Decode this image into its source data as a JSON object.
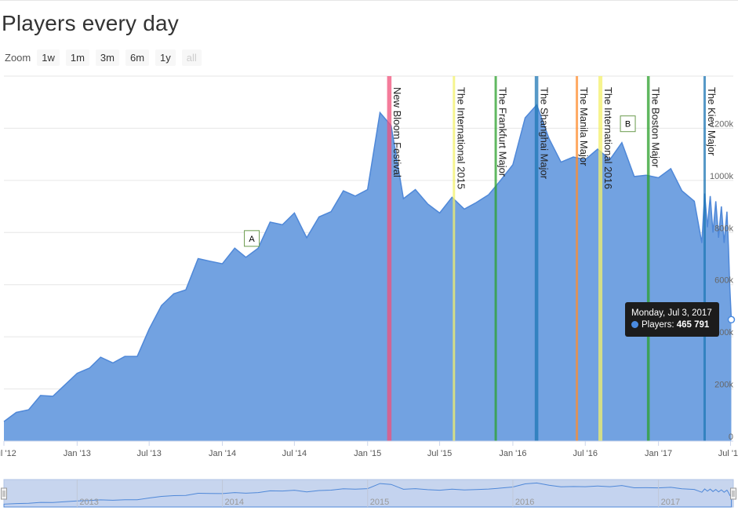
{
  "title": "Players every day",
  "zoom": {
    "label": "Zoom",
    "buttons": [
      "1w",
      "1m",
      "3m",
      "6m",
      "1y",
      "all"
    ],
    "selected": "all"
  },
  "tooltip": {
    "date": "Monday, Jul 3, 2017",
    "series": "Players:",
    "value": "465 791"
  },
  "colors": {
    "area": "#72a2e1",
    "area_line": "#4f88d8",
    "nav_fill": "#c7d5ee",
    "grid": "#e6e6e6"
  },
  "chart_data": {
    "type": "area",
    "title": "Players every day",
    "series": [
      {
        "name": "Players",
        "unit": "players"
      }
    ],
    "x_start": "2012-07-01",
    "x_end": "2017-07-08",
    "ylim": [
      0,
      1400000
    ],
    "y_ticks": [
      0,
      200000,
      400000,
      600000,
      800000,
      1000000,
      1200000
    ],
    "y_tick_labels": [
      "0",
      "200k",
      "400k",
      "600k",
      "800k",
      "1000k",
      "1200k"
    ],
    "x_ticks": [
      {
        "label": "Jul '12",
        "date": "2012-07-01"
      },
      {
        "label": "Jan '13",
        "date": "2013-01-01"
      },
      {
        "label": "Jul '13",
        "date": "2013-07-01"
      },
      {
        "label": "Jan '14",
        "date": "2014-01-01"
      },
      {
        "label": "Jul '14",
        "date": "2014-07-01"
      },
      {
        "label": "Jan '15",
        "date": "2015-01-01"
      },
      {
        "label": "Jul '15",
        "date": "2015-07-01"
      },
      {
        "label": "Jan '16",
        "date": "2016-01-01"
      },
      {
        "label": "Jul '16",
        "date": "2016-07-01"
      },
      {
        "label": "Jan '17",
        "date": "2017-01-01"
      },
      {
        "label": "Jul '17",
        "date": "2017-07-01"
      }
    ],
    "points": [
      [
        "2012-07-01",
        75000
      ],
      [
        "2012-08-01",
        110000
      ],
      [
        "2012-09-01",
        120000
      ],
      [
        "2012-10-01",
        175000
      ],
      [
        "2012-11-01",
        172000
      ],
      [
        "2012-12-01",
        215000
      ],
      [
        "2013-01-01",
        260000
      ],
      [
        "2013-02-01",
        280000
      ],
      [
        "2013-03-01",
        322000
      ],
      [
        "2013-04-01",
        300000
      ],
      [
        "2013-05-01",
        325000
      ],
      [
        "2013-06-01",
        325000
      ],
      [
        "2013-07-01",
        430000
      ],
      [
        "2013-08-01",
        520000
      ],
      [
        "2013-09-01",
        565000
      ],
      [
        "2013-10-01",
        580000
      ],
      [
        "2013-11-01",
        700000
      ],
      [
        "2013-12-01",
        690000
      ],
      [
        "2014-01-01",
        680000
      ],
      [
        "2014-02-01",
        740000
      ],
      [
        "2014-03-01",
        705000
      ],
      [
        "2014-04-01",
        740000
      ],
      [
        "2014-05-01",
        840000
      ],
      [
        "2014-06-01",
        830000
      ],
      [
        "2014-07-01",
        875000
      ],
      [
        "2014-08-01",
        780000
      ],
      [
        "2014-09-01",
        860000
      ],
      [
        "2014-10-01",
        880000
      ],
      [
        "2014-11-01",
        960000
      ],
      [
        "2014-12-01",
        940000
      ],
      [
        "2015-01-01",
        965000
      ],
      [
        "2015-02-01",
        1260000
      ],
      [
        "2015-03-01",
        1210000
      ],
      [
        "2015-04-01",
        930000
      ],
      [
        "2015-05-01",
        965000
      ],
      [
        "2015-06-01",
        910000
      ],
      [
        "2015-07-01",
        875000
      ],
      [
        "2015-08-01",
        935000
      ],
      [
        "2015-09-01",
        890000
      ],
      [
        "2015-10-01",
        915000
      ],
      [
        "2015-11-01",
        945000
      ],
      [
        "2015-12-01",
        1000000
      ],
      [
        "2016-01-01",
        1060000
      ],
      [
        "2016-02-01",
        1240000
      ],
      [
        "2016-03-01",
        1290000
      ],
      [
        "2016-04-01",
        1160000
      ],
      [
        "2016-05-01",
        1070000
      ],
      [
        "2016-06-01",
        1090000
      ],
      [
        "2016-07-01",
        1080000
      ],
      [
        "2016-08-01",
        1120000
      ],
      [
        "2016-09-01",
        1080000
      ],
      [
        "2016-10-01",
        1145000
      ],
      [
        "2016-11-01",
        1015000
      ],
      [
        "2016-12-01",
        1020000
      ],
      [
        "2017-01-01",
        1010000
      ],
      [
        "2017-02-01",
        1045000
      ],
      [
        "2017-03-01",
        960000
      ],
      [
        "2017-04-01",
        920000
      ],
      [
        "2017-04-20",
        760000
      ],
      [
        "2017-04-27",
        950000
      ],
      [
        "2017-05-04",
        820000
      ],
      [
        "2017-05-11",
        940000
      ],
      [
        "2017-05-18",
        800000
      ],
      [
        "2017-05-25",
        920000
      ],
      [
        "2017-06-01",
        780000
      ],
      [
        "2017-06-08",
        900000
      ],
      [
        "2017-06-15",
        760000
      ],
      [
        "2017-06-22",
        880000
      ],
      [
        "2017-06-26",
        740000
      ],
      [
        "2017-06-29",
        600000
      ],
      [
        "2017-07-03",
        465791
      ]
    ],
    "events": [
      {
        "name": "New Bloom Festival",
        "start": "2015-02-19",
        "end": "2015-03-02",
        "color": "#f0507a"
      },
      {
        "name": "The International 2015",
        "start": "2015-08-03",
        "end": "2015-08-08",
        "color": "#f3f06a"
      },
      {
        "name": "The Frankfurt Major",
        "start": "2015-11-16",
        "end": "2015-11-21",
        "color": "#2ca02c"
      },
      {
        "name": "The Shanghai Major",
        "start": "2016-02-25",
        "end": "2016-03-05",
        "color": "#1f77b4"
      },
      {
        "name": "The Manila Major",
        "start": "2016-06-07",
        "end": "2016-06-12",
        "color": "#ff8c2e"
      },
      {
        "name": "The International 2016",
        "start": "2016-08-03",
        "end": "2016-08-13",
        "color": "#f3f06a"
      },
      {
        "name": "The Boston Major",
        "start": "2016-12-03",
        "end": "2016-12-10",
        "color": "#2ca02c"
      },
      {
        "name": "The Kiev Major",
        "start": "2017-04-24",
        "end": "2017-04-30",
        "color": "#1f77b4"
      }
    ],
    "flags": [
      {
        "label": "A",
        "date": "2014-03-15"
      },
      {
        "label": "B",
        "date": "2016-10-15"
      }
    ],
    "navigator": {
      "year_labels": [
        "2013",
        "2014",
        "2015",
        "2016",
        "2017"
      ]
    }
  }
}
